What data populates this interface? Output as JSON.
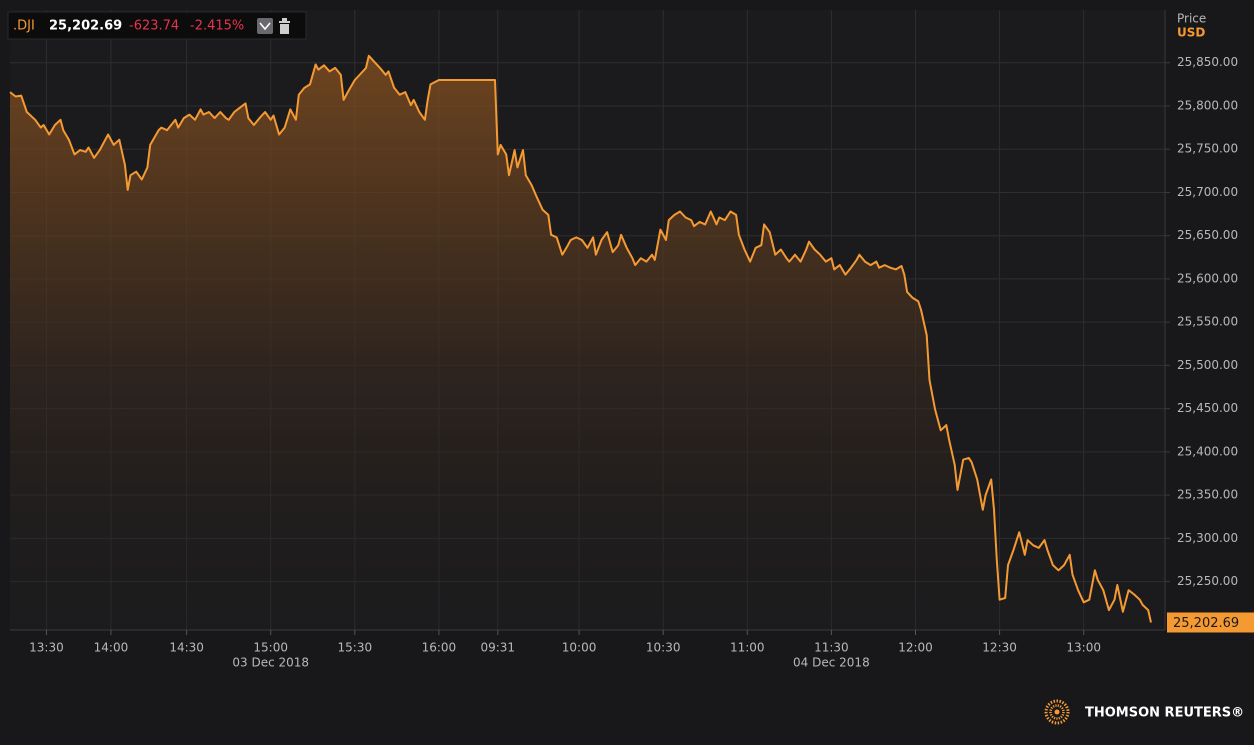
{
  "chart_data": {
    "type": "area",
    "symbol": ".DJI",
    "last_price": "25,202.69",
    "change": "-623.74",
    "change_pct": "-2.415%",
    "y_axis_title": "Price",
    "y_axis_unit": "USD",
    "brand": "THOMSON REUTERS®",
    "color": "#f59a33",
    "grid": true,
    "xlim": [
      -13,
      399
    ],
    "ylim": [
      25194,
      25911
    ],
    "xticks": [
      {
        "value": 0,
        "label": "13:30"
      },
      {
        "value": 23,
        "label": "14:00"
      },
      {
        "value": 50,
        "label": "14:30"
      },
      {
        "value": 80,
        "label": "15:00"
      },
      {
        "value": 110,
        "label": "15:30"
      },
      {
        "value": 140,
        "label": "16:00"
      },
      {
        "value": 161,
        "label": "09:31"
      },
      {
        "value": 190,
        "label": "10:00"
      },
      {
        "value": 220,
        "label": "10:30"
      },
      {
        "value": 250,
        "label": "11:00"
      },
      {
        "value": 280,
        "label": "11:30"
      },
      {
        "value": 310,
        "label": "12:00"
      },
      {
        "value": 340,
        "label": "12:30"
      },
      {
        "value": 370,
        "label": "13:00"
      }
    ],
    "date_labels": [
      {
        "value": 80,
        "label": "03 Dec 2018"
      },
      {
        "value": 280,
        "label": "04 Dec 2018"
      }
    ],
    "yticks": [
      {
        "value": 25250,
        "label": "25,250.00"
      },
      {
        "value": 25300,
        "label": "25,300.00"
      },
      {
        "value": 25350,
        "label": "25,350.00"
      },
      {
        "value": 25400,
        "label": "25,400.00"
      },
      {
        "value": 25450,
        "label": "25,450.00"
      },
      {
        "value": 25500,
        "label": "25,500.00"
      },
      {
        "value": 25550,
        "label": "25,550.00"
      },
      {
        "value": 25600,
        "label": "25,600.00"
      },
      {
        "value": 25650,
        "label": "25,650.00"
      },
      {
        "value": 25700,
        "label": "25,700.00"
      },
      {
        "value": 25750,
        "label": "25,750.00"
      },
      {
        "value": 25800,
        "label": "25,800.00"
      },
      {
        "value": 25850,
        "label": "25,850.00"
      }
    ],
    "x": [
      -13,
      -11,
      -9,
      -7,
      -4,
      -2,
      -1,
      1,
      3,
      5,
      6,
      8,
      10,
      12,
      14,
      15,
      17,
      19,
      21,
      22,
      24,
      26,
      28,
      29,
      30,
      32,
      34,
      36,
      37,
      40,
      41,
      43,
      46,
      47,
      49,
      51,
      53,
      55,
      56,
      58,
      60,
      62,
      64,
      65,
      67,
      69,
      71,
      72,
      74,
      76,
      78,
      80,
      81,
      83,
      85,
      87,
      89,
      90,
      92,
      94,
      96,
      97,
      99,
      101,
      103,
      105,
      106,
      108,
      110,
      112,
      114,
      115,
      117,
      119,
      121,
      122,
      124,
      126,
      128,
      130,
      131,
      133,
      135,
      136,
      137,
      140,
      160,
      161,
      162,
      164,
      165,
      167,
      168,
      170,
      171,
      173,
      175,
      177,
      179,
      180,
      182,
      184,
      186,
      187,
      189,
      191,
      193,
      195,
      196,
      198,
      200,
      202,
      204,
      205,
      207,
      209,
      210,
      212,
      214,
      216,
      217,
      219,
      221,
      222,
      224,
      226,
      228,
      230,
      231,
      233,
      235,
      237,
      239,
      240,
      242,
      244,
      246,
      247,
      249,
      251,
      253,
      255,
      256,
      258,
      260,
      262,
      264,
      265,
      267,
      269,
      271,
      272,
      274,
      276,
      278,
      280,
      281,
      283,
      285,
      287,
      289,
      290,
      292,
      294,
      296,
      297,
      299,
      301,
      303,
      305,
      306,
      307,
      309,
      311,
      312,
      314,
      315,
      317,
      319,
      321,
      322,
      324,
      325,
      327,
      329,
      330,
      332,
      334,
      335,
      337,
      338,
      339,
      340,
      342,
      343,
      345,
      347,
      349,
      350,
      352,
      354,
      356,
      357,
      359,
      361,
      363,
      365,
      366,
      368,
      370,
      372,
      374,
      375,
      377,
      379,
      381,
      382,
      384,
      386,
      388,
      390,
      391,
      393,
      394
    ],
    "values": [
      25816,
      25811,
      25812,
      25793,
      25784,
      25775,
      25778,
      25767,
      25778,
      25784,
      25772,
      25761,
      25744,
      25749,
      25747,
      25752,
      25740,
      25749,
      25761,
      25767,
      25755,
      25761,
      25732,
      25703,
      25720,
      25724,
      25715,
      25729,
      25755,
      25772,
      25775,
      25772,
      25784,
      25775,
      25786,
      25790,
      25784,
      25796,
      25790,
      25793,
      25786,
      25793,
      25786,
      25784,
      25793,
      25798,
      25803,
      25786,
      25778,
      25786,
      25793,
      25784,
      25789,
      25767,
      25775,
      25796,
      25784,
      25813,
      25821,
      25825,
      25848,
      25842,
      25847,
      25840,
      25844,
      25836,
      25807,
      25819,
      25830,
      25837,
      25844,
      25858,
      25851,
      25844,
      25836,
      25840,
      25821,
      25813,
      25816,
      25801,
      25807,
      25793,
      25784,
      25807,
      25825,
      25830,
      25830,
      25744,
      25755,
      25744,
      25720,
      25749,
      25729,
      25749,
      25720,
      25709,
      25694,
      25680,
      25674,
      25651,
      25648,
      25628,
      25639,
      25645,
      25648,
      25645,
      25636,
      25648,
      25628,
      25645,
      25654,
      25631,
      25639,
      25651,
      25636,
      25624,
      25616,
      25624,
      25620,
      25628,
      25622,
      25657,
      25645,
      25668,
      25674,
      25678,
      25671,
      25668,
      25661,
      25666,
      25663,
      25678,
      25663,
      25671,
      25668,
      25678,
      25674,
      25651,
      25634,
      25620,
      25636,
      25639,
      25663,
      25654,
      25628,
      25634,
      25624,
      25620,
      25628,
      25620,
      25634,
      25643,
      25634,
      25628,
      25620,
      25624,
      25611,
      25616,
      25605,
      25613,
      25622,
      25628,
      25620,
      25616,
      25620,
      25613,
      25616,
      25613,
      25611,
      25615,
      25605,
      25585,
      25578,
      25574,
      25564,
      25535,
      25483,
      25449,
      25425,
      25431,
      25414,
      25385,
      25356,
      25391,
      25393,
      25388,
      25368,
      25333,
      25350,
      25368,
      25333,
      25275,
      25229,
      25231,
      25269,
      25287,
      25307,
      25281,
      25298,
      25292,
      25289,
      25298,
      25287,
      25269,
      25263,
      25269,
      25281,
      25258,
      25240,
      25226,
      25229,
      25263,
      25252,
      25240,
      25217,
      25229,
      25246,
      25215,
      25240,
      25235,
      25229,
      25223,
      25217,
      25202.69
    ]
  }
}
